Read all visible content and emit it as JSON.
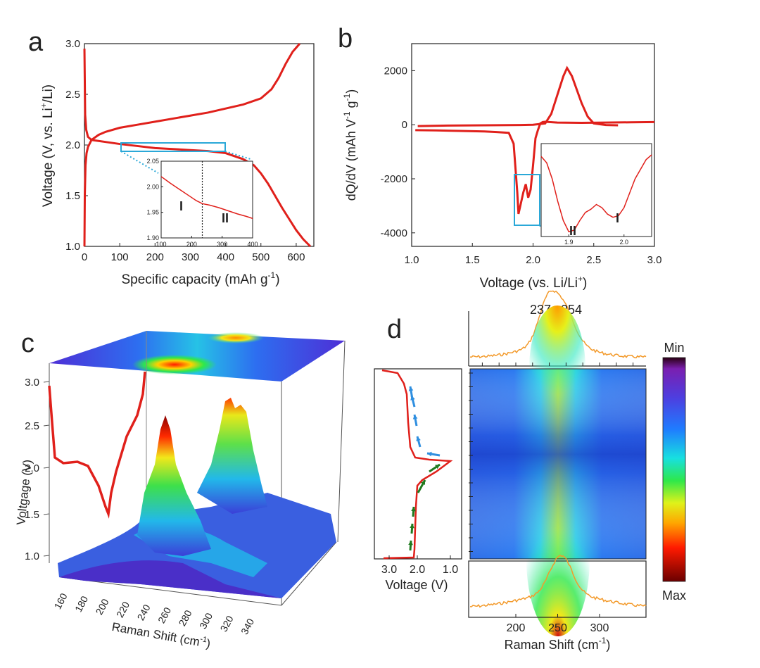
{
  "panels": {
    "a": "a",
    "b": "b",
    "c": "c",
    "d": "d"
  },
  "colors": {
    "curve": "#e0201b",
    "inset_box": "#2aa8d8",
    "spectrum": "#f39a2b",
    "arrow_discharge": "#1f7a1f",
    "arrow_charge": "#2f8fe0",
    "axis": "#222222"
  },
  "chart_data": [
    {
      "id": "a",
      "type": "line",
      "xlabel": "Specific capacity (mAh g",
      "xlabel_sup": "-1",
      "xlabel_tail": ")",
      "ylabel": "Voltage (V, vs. Li",
      "ylabel_sup": "+",
      "ylabel_tail": "/Li)",
      "xlim": [
        0,
        650
      ],
      "ylim": [
        1.0,
        3.0
      ],
      "xticks": [
        "0",
        "100",
        "200",
        "300",
        "400",
        "500",
        "600"
      ],
      "yticks": [
        "1.0",
        "1.5",
        "2.0",
        "2.5",
        "3.0"
      ],
      "series": [
        {
          "x": [
            0,
            2,
            5,
            10,
            20,
            40,
            60,
            100,
            150,
            200,
            250,
            300,
            350,
            400,
            450,
            480,
            500,
            520,
            540,
            560,
            580,
            600,
            620,
            640
          ],
          "y": [
            2.95,
            2.3,
            2.15,
            2.08,
            2.05,
            2.04,
            2.03,
            2.01,
            1.99,
            1.97,
            1.96,
            1.95,
            1.94,
            1.92,
            1.86,
            1.8,
            1.72,
            1.62,
            1.5,
            1.38,
            1.27,
            1.16,
            1.07,
            1.0
          ]
        },
        {
          "x": [
            0,
            1,
            3,
            6,
            10,
            20,
            40,
            60,
            100,
            150,
            200,
            250,
            300,
            350,
            400,
            450,
            500,
            530,
            550,
            570,
            590,
            610
          ],
          "y": [
            1.0,
            1.5,
            1.8,
            1.92,
            1.98,
            2.05,
            2.1,
            2.13,
            2.17,
            2.2,
            2.23,
            2.26,
            2.29,
            2.32,
            2.36,
            2.4,
            2.46,
            2.55,
            2.66,
            2.8,
            2.92,
            3.0
          ]
        }
      ],
      "inset": {
        "xlim": [
          100,
          400
        ],
        "ylim": [
          1.9,
          2.05
        ],
        "xticks": [
          "100",
          "200",
          "300",
          "400"
        ],
        "yticks": [
          "1.90",
          "1.95",
          "2.00",
          "2.05"
        ],
        "x": [
          100,
          130,
          160,
          190,
          215,
          235,
          260,
          290,
          320,
          350,
          380,
          400
        ],
        "y": [
          2.02,
          2.007,
          1.995,
          1.983,
          1.973,
          1.967,
          1.964,
          1.959,
          1.953,
          1.947,
          1.942,
          1.938
        ],
        "divider_x": 235,
        "region_labels": [
          "I",
          "II"
        ]
      }
    },
    {
      "id": "b",
      "type": "line",
      "xlabel": "Voltage (vs. Li/Li",
      "xlabel_sup": "+",
      "xlabel_tail": ")",
      "ylabel": "dQ/dV (mAh V",
      "ylabel_sup1": "-1",
      "ylabel_mid": " g",
      "ylabel_sup2": "-1",
      "ylabel_tail": ")",
      "xlim": [
        1.0,
        3.0
      ],
      "ylim": [
        -4500,
        3000
      ],
      "xticks": [
        "1.0",
        "1.5",
        "2.0",
        "2.5",
        "3.0"
      ],
      "yticks": [
        "-4000",
        "-2000",
        "0",
        "2000"
      ],
      "series": [
        {
          "x": [
            1.03,
            1.2,
            1.4,
            1.6,
            1.7,
            1.8,
            1.84,
            1.87,
            1.88,
            1.9,
            1.92,
            1.94,
            1.96,
            1.98,
            2.0,
            2.02,
            2.04,
            2.06,
            2.08,
            2.1,
            2.2,
            2.4,
            2.6,
            2.8,
            3.0
          ],
          "y": [
            -200,
            -210,
            -230,
            -250,
            -270,
            -300,
            -700,
            -2500,
            -3300,
            -2900,
            -2500,
            -2200,
            -2700,
            -2400,
            -1500,
            -500,
            -200,
            50,
            100,
            110,
            80,
            70,
            80,
            90,
            100
          ]
        },
        {
          "x": [
            1.05,
            1.3,
            1.6,
            1.9,
            2.0,
            2.1,
            2.15,
            2.2,
            2.25,
            2.28,
            2.32,
            2.36,
            2.4,
            2.45,
            2.5,
            2.6,
            2.7
          ],
          "y": [
            -50,
            -30,
            -20,
            -10,
            0,
            50,
            400,
            1100,
            1800,
            2100,
            1800,
            1300,
            800,
            300,
            50,
            -10,
            -20
          ]
        }
      ],
      "inset": {
        "xlim": [
          1.85,
          2.05
        ],
        "ylim": [
          -3400,
          -500
        ],
        "xticks": [
          "1.9",
          "2.0"
        ],
        "x": [
          1.85,
          1.86,
          1.87,
          1.88,
          1.89,
          1.9,
          1.91,
          1.92,
          1.93,
          1.94,
          1.95,
          1.96,
          1.97,
          1.98,
          1.99,
          2.0,
          2.02,
          2.04,
          2.05
        ],
        "y": [
          -900,
          -1100,
          -1600,
          -2300,
          -2900,
          -3250,
          -3200,
          -2900,
          -2650,
          -2550,
          -2400,
          -2500,
          -2700,
          -2800,
          -2750,
          -2500,
          -1600,
          -1000,
          -850
        ],
        "region_labels": [
          "II",
          "I"
        ]
      }
    },
    {
      "id": "c",
      "type": "area",
      "xlabel": "Raman Shift (cm",
      "xlabel_sup": "-1",
      "xlabel_tail": ")",
      "ylabel": "Voltgage (V)",
      "xticks": [
        "160",
        "180",
        "200",
        "220",
        "240",
        "260",
        "280",
        "300",
        "320",
        "340"
      ],
      "yticks": [
        "1.0",
        "1.5",
        "2.0",
        "2.5",
        "3.0"
      ]
    },
    {
      "id": "d",
      "type": "heatmap",
      "voltage_xlabel": "Voltage (V)",
      "voltage_xticks": [
        "3.0",
        "2.0",
        "1.0"
      ],
      "raman_xlabel": "Raman Shift (cm",
      "raman_xlabel_sup": "-1",
      "raman_xlabel_tail": ")",
      "raman_xticks": [
        "200",
        "250",
        "300"
      ],
      "peak_labels": [
        "237",
        "254"
      ],
      "colorbar": {
        "top": "Min",
        "bottom": "Max"
      }
    }
  ]
}
